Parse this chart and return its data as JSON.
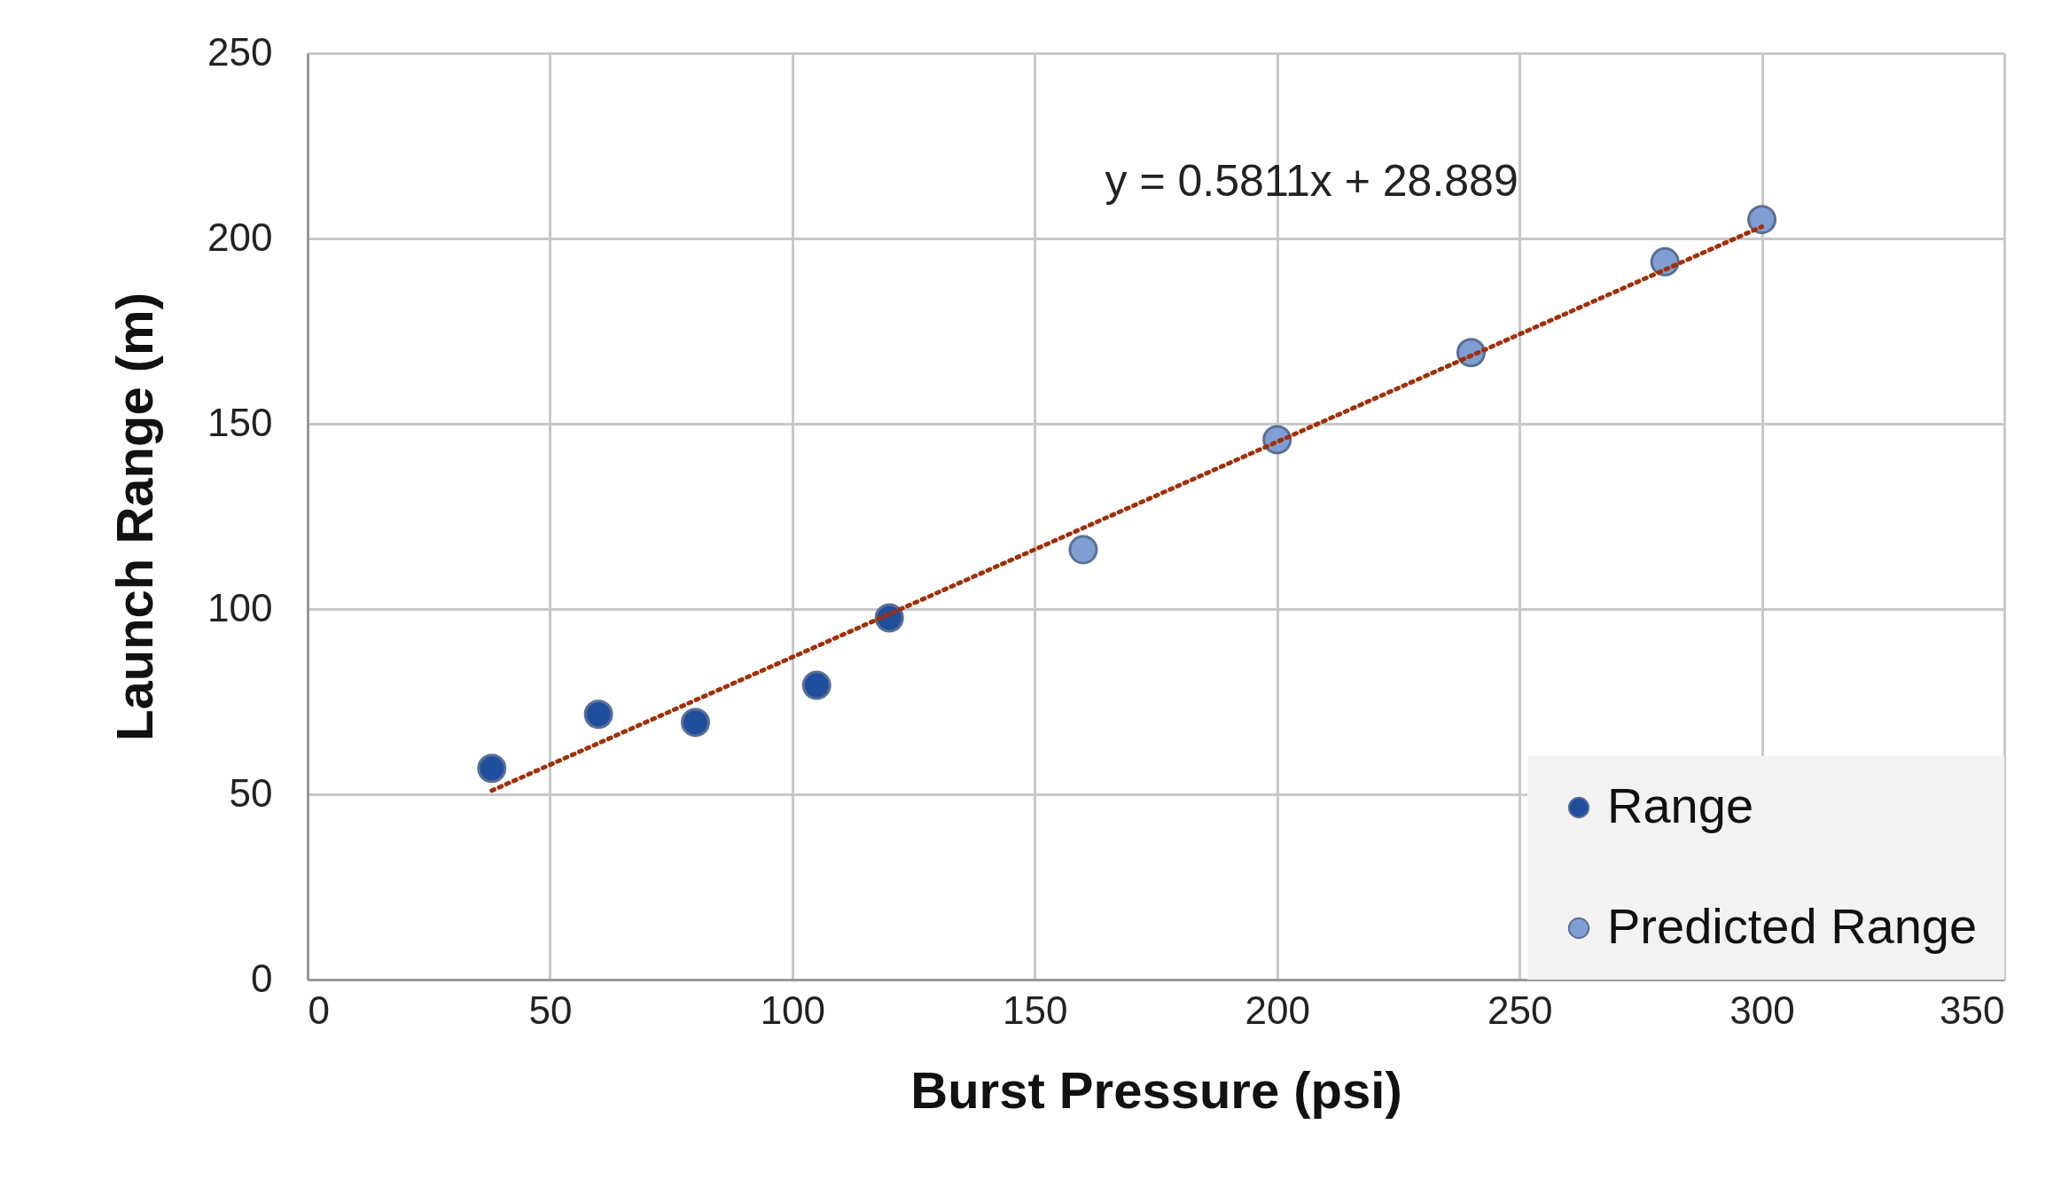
{
  "chart_data": {
    "type": "scatter",
    "xlabel": "Burst Pressure (psi)",
    "ylabel": "Launch Range (m)",
    "xlim": [
      0,
      350
    ],
    "xticks": [
      0,
      50,
      100,
      150,
      200,
      250,
      300,
      350
    ],
    "ylim": [
      0,
      250
    ],
    "yticks": [
      0,
      50,
      100,
      150,
      200,
      250
    ],
    "grid": true,
    "legend": "bottom right",
    "marker": "circle",
    "annotations": [
      "y = 0.5811x + 28.889"
    ],
    "series": [
      {
        "name": "Range",
        "color": "#1f4e9c",
        "x": [
          38,
          60,
          80,
          105,
          120
        ],
        "values": [
          57,
          71.6,
          69.4,
          79.4,
          97.6
        ]
      },
      {
        "name": "Predicted Range",
        "color": "#7f9fd4",
        "x": [
          160,
          200,
          240,
          280,
          300
        ],
        "values": [
          116,
          145.7,
          169.2,
          193.7,
          205.1
        ]
      },
      {
        "type": "line",
        "color": "#a0300a",
        "marker": "none",
        "line_style": "dotted",
        "x": [
          38,
          300
        ],
        "values": [
          51,
          203.2
        ]
      }
    ]
  }
}
